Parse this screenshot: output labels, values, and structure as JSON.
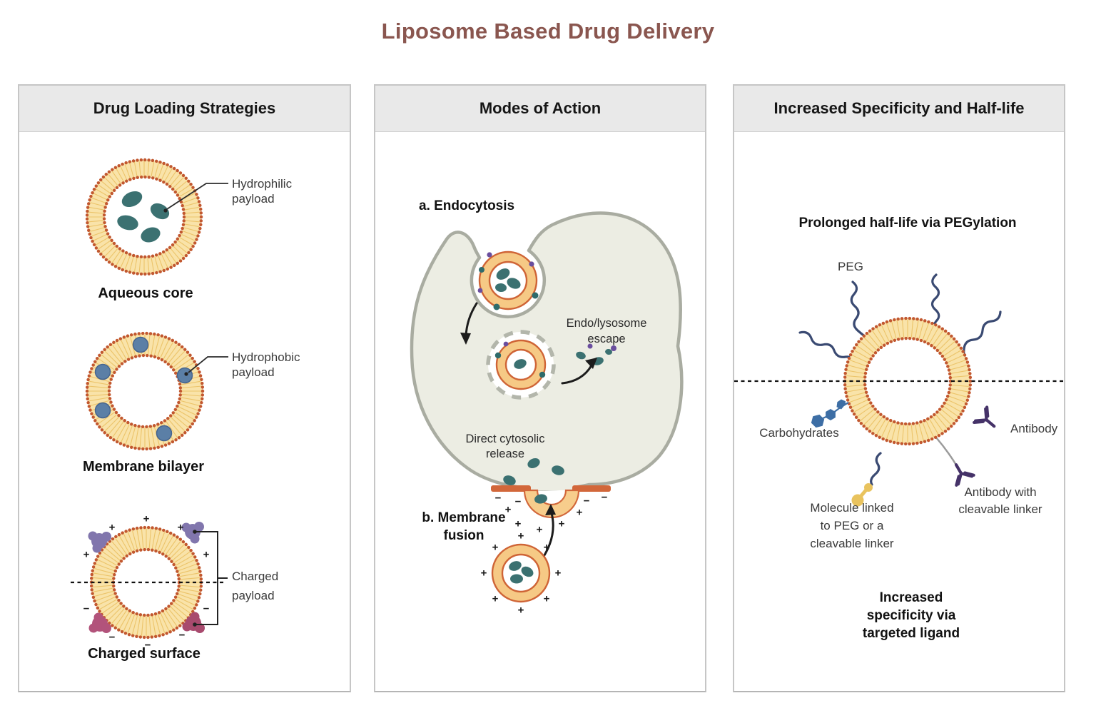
{
  "title": "Liposome Based Drug Delivery",
  "symbols": {
    "plus": "+",
    "minus": "−"
  },
  "colors": {
    "title_text": "#8a564f",
    "panel_header_bg": "#e9e9e9",
    "lipid_head": "#c2582f",
    "lipid_tail": "#f9e3a9",
    "payload_teal": "#3b7171",
    "payload_blue": "#5b7fa6",
    "charge_purple": "#8176ad",
    "charge_pink": "#ad4f74",
    "cell_fill": "#ecede3",
    "cell_border": "#a9aca1",
    "peg_navy": "#3a4a72",
    "antibody_purple": "#453268",
    "carbohydrate_blue": "#3d6ea5",
    "molecule_gold": "#e9c35e"
  },
  "panels": {
    "loading": {
      "header": "Drug Loading Strategies",
      "aqueous": {
        "label": "Aqueous core",
        "annotation": [
          "Hydrophilic",
          "payload"
        ]
      },
      "bilayer": {
        "label": "Membrane bilayer",
        "annotation": [
          "Hydrophobic",
          "payload"
        ]
      },
      "charged": {
        "label": "Charged surface",
        "annotation": [
          "Charged",
          "payload"
        ]
      }
    },
    "modes": {
      "header": "Modes of Action",
      "endocytosis": "a. Endocytosis",
      "escape": [
        "Endo/lysosome",
        "escape"
      ],
      "release": [
        "Direct cytosolic",
        "release"
      ],
      "fusion": [
        "b. Membrane",
        "fusion"
      ]
    },
    "specificity": {
      "header": "Increased Specificity and Half-life",
      "pegylation": "Prolonged half-life via PEGylation",
      "peg": "PEG",
      "carbohydrates": "Carbohydrates",
      "antibody": "Antibody",
      "antibody_cleavable": [
        "Antibody with",
        "cleavable linker"
      ],
      "molecule": [
        "Molecule linked",
        "to PEG or a",
        "cleavable linker"
      ],
      "footer": [
        "Increased",
        "specificity via",
        "targeted ligand"
      ]
    }
  }
}
